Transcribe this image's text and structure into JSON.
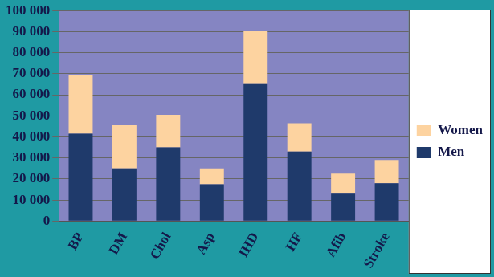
{
  "chart_data": {
    "type": "bar",
    "stacked": true,
    "grid": true,
    "legend": "right",
    "categories": [
      "BP",
      "DM",
      "Chol",
      "Asp",
      "IHD",
      "HF",
      "Afib",
      "Stroke"
    ],
    "series": [
      {
        "name": "Men",
        "color": "#1f3a6b",
        "values": [
          41500,
          25000,
          35000,
          17500,
          65500,
          33000,
          13000,
          18000
        ]
      },
      {
        "name": "Women",
        "color": "#fdd3a0",
        "values": [
          28000,
          20500,
          15500,
          7500,
          25000,
          13500,
          9500,
          11000
        ]
      }
    ],
    "ylim": [
      0,
      100000
    ],
    "yticks": [
      0,
      {
        "value": 10000,
        "label": "10 000"
      },
      {
        "value": 20000,
        "label": "20 000"
      },
      {
        "value": 30000,
        "label": "30 000"
      },
      {
        "value": 40000,
        "label": "40 000"
      },
      {
        "value": 50000,
        "label": "50 000"
      },
      {
        "value": 60000,
        "label": "60 000"
      },
      {
        "value": 70000,
        "label": "70 000"
      },
      {
        "value": 80000,
        "label": "80 000"
      },
      {
        "value": 90000,
        "label": "90 000"
      },
      {
        "value": 100000,
        "label": "100 000"
      }
    ]
  }
}
